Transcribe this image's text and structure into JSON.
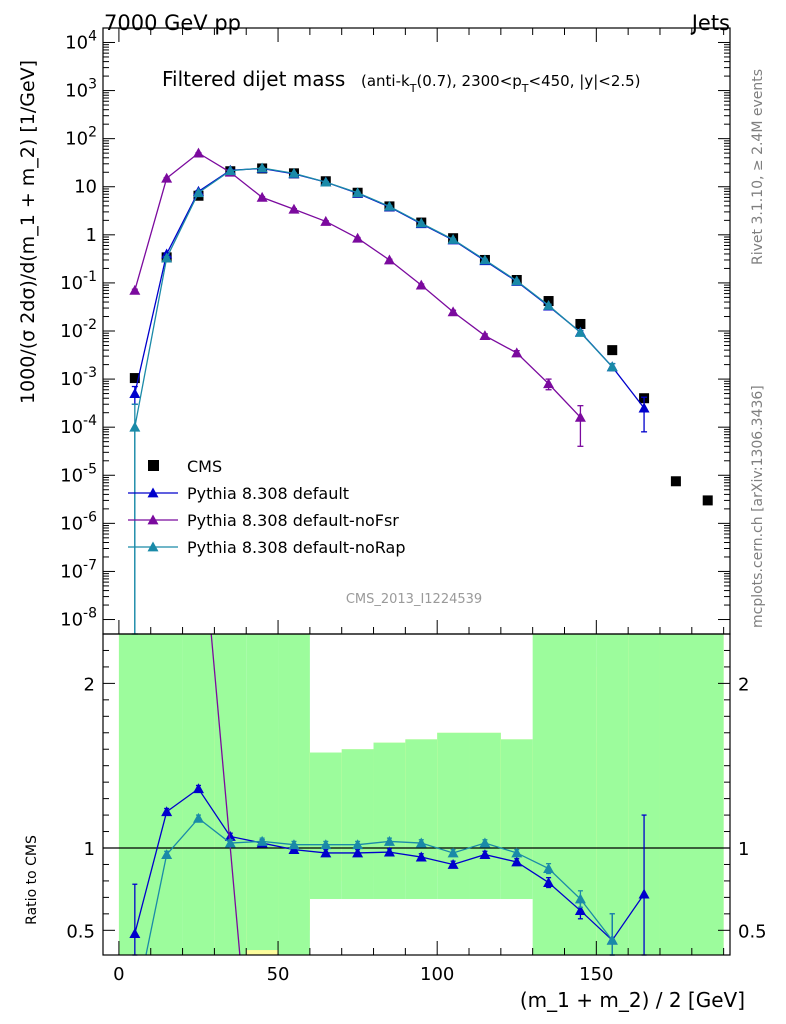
{
  "header": {
    "left": "7000 GeV pp",
    "right": "Jets"
  },
  "plot_title": {
    "main": "Filtered dijet mass",
    "sub": "(anti-k",
    "sub_T": "T",
    "sub2": "(0.7), 2300<p",
    "sub_T2": "T",
    "sub3": "<450, |y|<2.5)"
  },
  "side": {
    "rivet": "Rivet 3.1.10, ≥ 2.4M events",
    "mcplots": "mcplots.cern.ch [arXiv:1306.3436]"
  },
  "watermark": "CMS_2013_I1224539",
  "colors": {
    "cms": "#000000",
    "default": "#0000cc",
    "noFsr": "#7b0a9e",
    "noRap": "#1a8aa8",
    "band_green": "#9cfc9c",
    "band_yellow": "#fcfc9c"
  },
  "chart_data": [
    {
      "type": "line",
      "ylabel": "1000/(σ 2dσ)/d(m_1 + m_2) [1/GeV]",
      "yscale": "log",
      "ylim": [
        5e-09,
        20000
      ],
      "xlim": [
        -5,
        192
      ],
      "y_tick_labels": [
        "10^-8",
        "10^-7",
        "10^-6",
        "10^-5",
        "10^-4",
        "10^-3",
        "10^-2",
        "10^-1",
        "1",
        "10",
        "10^2",
        "10^3",
        "10^4"
      ],
      "legend": {
        "position": "bottom-left",
        "entries": [
          "CMS",
          "Pythia 8.308 default",
          "Pythia 8.308 default-noFsr",
          "Pythia 8.308 default-noRap"
        ]
      },
      "series": [
        {
          "name": "CMS",
          "marker": "square",
          "x": [
            5,
            15,
            25,
            35,
            45,
            55,
            65,
            75,
            85,
            95,
            105,
            115,
            125,
            135,
            145,
            155,
            165,
            175,
            185
          ],
          "y": [
            0.00105,
            0.34,
            6.5,
            21,
            24,
            19,
            13,
            7.5,
            3.9,
            1.8,
            0.85,
            0.3,
            0.115,
            0.042,
            0.014,
            0.004,
            0.0004,
            7.5e-06,
            3e-06
          ]
        },
        {
          "name": "Pythia 8.308 default",
          "marker": "triangle",
          "x": [
            5,
            15,
            25,
            35,
            45,
            55,
            65,
            75,
            85,
            95,
            105,
            115,
            125,
            135,
            145,
            155,
            165
          ],
          "y": [
            0.0005,
            0.4,
            8,
            22,
            24,
            18.5,
            12.5,
            7.3,
            3.8,
            1.7,
            0.78,
            0.29,
            0.107,
            0.033,
            0.0095,
            0.0018,
            0.00025
          ],
          "yerr": [
            0.0002,
            0.02,
            0.3,
            0.5,
            0.5,
            0.4,
            0.3,
            0.2,
            0.1,
            0.05,
            0.02,
            0.01,
            0.004,
            0.002,
            0.0008,
            0.0003,
            0.00017
          ]
        },
        {
          "name": "Pythia 8.308 default-noFsr",
          "marker": "triangle",
          "x": [
            5,
            15,
            25,
            35,
            45,
            55,
            65,
            75,
            85,
            95,
            105,
            115,
            125,
            135,
            145
          ],
          "y": [
            0.07,
            15,
            50,
            20,
            6,
            3.4,
            1.9,
            0.85,
            0.3,
            0.09,
            0.025,
            0.008,
            0.0035,
            0.0008,
            0.00016
          ],
          "yerr": [
            0.004,
            0.4,
            1,
            0.5,
            0.2,
            0.1,
            0.06,
            0.03,
            0.01,
            0.005,
            0.002,
            0.0007,
            0.0004,
            0.0002,
            0.00012
          ]
        },
        {
          "name": "Pythia 8.308 default-noRap",
          "marker": "triangle",
          "x": [
            5,
            15,
            25,
            35,
            45,
            55,
            65,
            75,
            85,
            95,
            105,
            115,
            125,
            135,
            145,
            155
          ],
          "y": [
            0.0001,
            0.33,
            7.5,
            21.5,
            24.5,
            19,
            12.5,
            7.5,
            3.9,
            1.75,
            0.8,
            0.3,
            0.11,
            0.034,
            0.0093,
            0.0018
          ],
          "yerr": [
            0.0002,
            0.02,
            0.3,
            0.5,
            0.5,
            0.4,
            0.3,
            0.2,
            0.1,
            0.05,
            0.02,
            0.01,
            0.004,
            0.002,
            0.0008,
            0.0003
          ]
        }
      ]
    },
    {
      "type": "line",
      "ylabel": "Ratio to CMS",
      "xlabel": "(m_1 + m_2) / 2 [GeV]",
      "ylim": [
        0.35,
        2.3
      ],
      "xlim": [
        -5,
        192
      ],
      "y_tick_labels": [
        "0.5",
        "1",
        "2"
      ],
      "x_tick_labels": [
        "0",
        "50",
        "100",
        "150"
      ],
      "reference_line": 1,
      "bands": [
        {
          "x0": 0,
          "x1": 20,
          "yellow": [
            0.2,
            3.0
          ],
          "green": [
            0.2,
            3.0
          ]
        },
        {
          "x0": 20,
          "x1": 30,
          "yellow": [
            0.68,
            1.72
          ],
          "green": [
            0.2,
            3.0
          ]
        },
        {
          "x0": 30,
          "x1": 40,
          "yellow": [
            0.3,
            1.8
          ],
          "green": [
            0.2,
            3.0
          ]
        },
        {
          "x0": 40,
          "x1": 50,
          "yellow": [
            0.3,
            1.88
          ],
          "green": [
            0.38,
            3.0
          ]
        },
        {
          "x0": 50,
          "x1": 60,
          "yellow": [
            0.5,
            1.72
          ],
          "green": [
            0.2,
            3.0
          ]
        },
        {
          "x0": 60,
          "x1": 70,
          "yellow": [
            0.8,
            1.58
          ],
          "green": [
            0.69,
            1.58
          ]
        },
        {
          "x0": 70,
          "x1": 80,
          "yellow": [
            0.8,
            1.6
          ],
          "green": [
            0.69,
            1.6
          ]
        },
        {
          "x0": 80,
          "x1": 90,
          "yellow": [
            0.83,
            1.64
          ],
          "green": [
            0.69,
            1.64
          ]
        },
        {
          "x0": 90,
          "x1": 100,
          "yellow": [
            0.83,
            1.66
          ],
          "green": [
            0.69,
            1.66
          ]
        },
        {
          "x0": 100,
          "x1": 110,
          "yellow": [
            0.83,
            1.7
          ],
          "green": [
            0.69,
            1.7
          ]
        },
        {
          "x0": 110,
          "x1": 120,
          "yellow": [
            0.83,
            1.7
          ],
          "green": [
            0.69,
            1.7
          ]
        },
        {
          "x0": 120,
          "x1": 130,
          "yellow": [
            0.86,
            1.66
          ],
          "green": [
            0.69,
            1.66
          ]
        },
        {
          "x0": 130,
          "x1": 140,
          "yellow": [
            0.86,
            1.62
          ],
          "green": [
            0.2,
            3.0
          ]
        },
        {
          "x0": 140,
          "x1": 150,
          "yellow": [
            0.8,
            1.64
          ],
          "green": [
            0.2,
            3.0
          ]
        },
        {
          "x0": 150,
          "x1": 160,
          "yellow": [
            0.2,
            2.1
          ],
          "green": [
            0.2,
            3.0
          ]
        },
        {
          "x0": 160,
          "x1": 170,
          "yellow": [
            0.58,
            3.0
          ],
          "green": [
            0.2,
            3.0
          ]
        },
        {
          "x0": 170,
          "x1": 190,
          "yellow": [
            0.2,
            3.0
          ],
          "green": [
            0.2,
            3.0
          ]
        }
      ],
      "series": [
        {
          "name": "Pythia 8.308 default",
          "x": [
            5,
            15,
            25,
            35,
            45,
            55,
            65,
            75,
            85,
            95,
            105,
            115,
            125,
            135,
            145,
            155,
            165
          ],
          "y": [
            0.48,
            1.22,
            1.36,
            1.07,
            1.03,
            0.99,
            0.97,
            0.97,
            0.975,
            0.945,
            0.9,
            0.96,
            0.915,
            0.79,
            0.62,
            0.44,
            0.72
          ],
          "yerr": [
            0.3,
            0.02,
            0.02,
            0.02,
            0.02,
            0.02,
            0.02,
            0.02,
            0.02,
            0.02,
            0.02,
            0.02,
            0.02,
            0.03,
            0.05,
            0.16,
            0.48
          ]
        },
        {
          "name": "Pythia 8.308 default-noFsr",
          "x": [
            29,
            38
          ],
          "y": [
            2.35,
            0.33
          ]
        },
        {
          "name": "Pythia 8.308 default-noRap",
          "x": [
            15,
            25,
            35,
            45,
            55,
            65,
            75,
            85,
            95,
            105,
            115,
            125,
            135,
            145,
            155
          ],
          "y": [
            0.96,
            1.18,
            1.03,
            1.04,
            1.02,
            1.02,
            1.02,
            1.04,
            1.03,
            0.97,
            1.03,
            0.97,
            0.875,
            0.69,
            0.44
          ],
          "yerr": [
            0.02,
            0.02,
            0.02,
            0.02,
            0.02,
            0.02,
            0.02,
            0.02,
            0.02,
            0.02,
            0.02,
            0.02,
            0.03,
            0.05,
            0.16
          ]
        }
      ]
    }
  ]
}
